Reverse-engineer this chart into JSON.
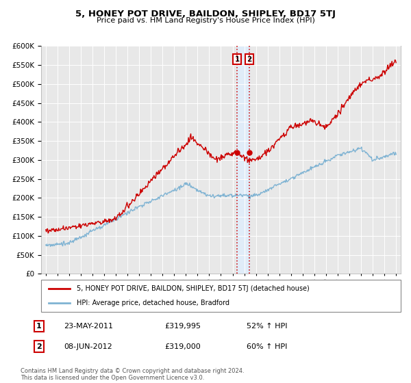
{
  "title": "5, HONEY POT DRIVE, BAILDON, SHIPLEY, BD17 5TJ",
  "subtitle": "Price paid vs. HM Land Registry's House Price Index (HPI)",
  "house_color": "#cc0000",
  "hpi_color": "#7fb3d3",
  "vline_color": "#cc0000",
  "band_color": "#ddeeff",
  "transaction_1": {
    "date": "23-MAY-2011",
    "price": "£319,995",
    "hpi_pct": "52% ↑ HPI",
    "x": 2011.39
  },
  "transaction_2": {
    "date": "08-JUN-2012",
    "price": "£319,000",
    "hpi_pct": "60% ↑ HPI",
    "x": 2012.44
  },
  "legend_house": "5, HONEY POT DRIVE, BAILDON, SHIPLEY, BD17 5TJ (detached house)",
  "legend_hpi": "HPI: Average price, detached house, Bradford",
  "footnote": "Contains HM Land Registry data © Crown copyright and database right 2024.\nThis data is licensed under the Open Government Licence v3.0.",
  "ylim": [
    0,
    600000
  ],
  "yticks": [
    0,
    50000,
    100000,
    150000,
    200000,
    250000,
    300000,
    350000,
    400000,
    450000,
    500000,
    550000,
    600000
  ],
  "background_color": "#ffffff",
  "plot_bg_color": "#e8e8e8"
}
